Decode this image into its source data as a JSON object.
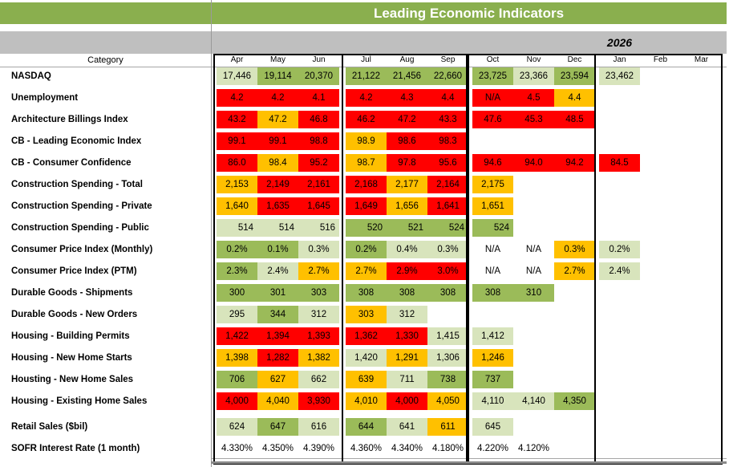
{
  "title": "Leading Economic Indicators",
  "year_label": "2026",
  "category_header": "Category",
  "months": [
    "Apr",
    "May",
    "Jun",
    "Jul",
    "Aug",
    "Sep",
    "Oct",
    "Nov",
    "Dec",
    "Jan",
    "Feb",
    "Mar"
  ],
  "colors": {
    "title_green": "#8AAF4E",
    "dark_green": "#9BBB59",
    "light_green": "#D8E4BC",
    "red": "#FF0000",
    "amber": "#FFC000",
    "gray_band": "#BFBFBF"
  },
  "rows": [
    {
      "label": "NASDAQ",
      "cells": [
        {
          "v": "17,446",
          "c": "light_green"
        },
        {
          "v": "19,114",
          "c": "dark_green"
        },
        {
          "v": "20,370",
          "c": "dark_green"
        },
        {
          "v": "21,122",
          "c": "dark_green"
        },
        {
          "v": "21,456",
          "c": "dark_green"
        },
        {
          "v": "22,660",
          "c": "dark_green"
        },
        {
          "v": "23,725",
          "c": "dark_green"
        },
        {
          "v": "23,366",
          "c": "light_green"
        },
        {
          "v": "23,594",
          "c": "dark_green"
        },
        {
          "v": "23,462",
          "c": "light_green"
        },
        {
          "v": "",
          "c": ""
        },
        {
          "v": "",
          "c": ""
        }
      ]
    },
    {
      "label": "Unemployment",
      "cells": [
        {
          "v": "4.2",
          "c": "red"
        },
        {
          "v": "4.2",
          "c": "red"
        },
        {
          "v": "4.1",
          "c": "red"
        },
        {
          "v": "4.2",
          "c": "red"
        },
        {
          "v": "4.3",
          "c": "red"
        },
        {
          "v": "4.4",
          "c": "red"
        },
        {
          "v": "N/A",
          "c": "red"
        },
        {
          "v": "4.5",
          "c": "red"
        },
        {
          "v": "4.4",
          "c": "amber"
        },
        {
          "v": "",
          "c": ""
        },
        {
          "v": "",
          "c": ""
        },
        {
          "v": "",
          "c": ""
        }
      ]
    },
    {
      "label": "Architecture Billings Index",
      "cells": [
        {
          "v": "43.2",
          "c": "red"
        },
        {
          "v": "47.2",
          "c": "amber"
        },
        {
          "v": "46.8",
          "c": "red"
        },
        {
          "v": "46.2",
          "c": "red"
        },
        {
          "v": "47.2",
          "c": "red"
        },
        {
          "v": "43.3",
          "c": "red"
        },
        {
          "v": "47.6",
          "c": "red"
        },
        {
          "v": "45.3",
          "c": "red"
        },
        {
          "v": "48.5",
          "c": "red"
        },
        {
          "v": "",
          "c": ""
        },
        {
          "v": "",
          "c": ""
        },
        {
          "v": "",
          "c": ""
        }
      ]
    },
    {
      "label": "CB - Leading Economic Index",
      "cells": [
        {
          "v": "99.1",
          "c": "red"
        },
        {
          "v": "99.1",
          "c": "red"
        },
        {
          "v": "98.8",
          "c": "red"
        },
        {
          "v": "98.9",
          "c": "amber"
        },
        {
          "v": "98.6",
          "c": "red"
        },
        {
          "v": "98.3",
          "c": "red"
        },
        {
          "v": "",
          "c": ""
        },
        {
          "v": "",
          "c": ""
        },
        {
          "v": "",
          "c": ""
        },
        {
          "v": "",
          "c": ""
        },
        {
          "v": "",
          "c": ""
        },
        {
          "v": "",
          "c": ""
        }
      ]
    },
    {
      "label": "CB - Consumer Confidence",
      "cells": [
        {
          "v": "86.0",
          "c": "red"
        },
        {
          "v": "98.4",
          "c": "amber"
        },
        {
          "v": "95.2",
          "c": "red"
        },
        {
          "v": "98.7",
          "c": "amber"
        },
        {
          "v": "97.8",
          "c": "red"
        },
        {
          "v": "95.6",
          "c": "red"
        },
        {
          "v": "94.6",
          "c": "red"
        },
        {
          "v": "94.0",
          "c": "red"
        },
        {
          "v": "94.2",
          "c": "red"
        },
        {
          "v": "84.5",
          "c": "red"
        },
        {
          "v": "",
          "c": ""
        },
        {
          "v": "",
          "c": ""
        }
      ]
    },
    {
      "label": "Construction Spending - Total",
      "cells": [
        {
          "v": "2,153",
          "c": "amber"
        },
        {
          "v": "2,149",
          "c": "red"
        },
        {
          "v": "2,161",
          "c": "red"
        },
        {
          "v": "2,168",
          "c": "red"
        },
        {
          "v": "2,177",
          "c": "amber"
        },
        {
          "v": "2,164",
          "c": "red"
        },
        {
          "v": "2,175",
          "c": "amber"
        },
        {
          "v": "",
          "c": ""
        },
        {
          "v": "",
          "c": ""
        },
        {
          "v": "",
          "c": ""
        },
        {
          "v": "",
          "c": ""
        },
        {
          "v": "",
          "c": ""
        }
      ]
    },
    {
      "label": "Construction Spending - Private",
      "cells": [
        {
          "v": "1,640",
          "c": "amber"
        },
        {
          "v": "1,635",
          "c": "red"
        },
        {
          "v": "1,645",
          "c": "red"
        },
        {
          "v": "1,649",
          "c": "red"
        },
        {
          "v": "1,656",
          "c": "amber"
        },
        {
          "v": "1,641",
          "c": "red"
        },
        {
          "v": "1,651",
          "c": "amber"
        },
        {
          "v": "",
          "c": ""
        },
        {
          "v": "",
          "c": ""
        },
        {
          "v": "",
          "c": ""
        },
        {
          "v": "",
          "c": ""
        },
        {
          "v": "",
          "c": ""
        }
      ]
    },
    {
      "label": "Construction Spending - Public",
      "align": "right",
      "cells": [
        {
          "v": "514",
          "c": "light_green"
        },
        {
          "v": "514",
          "c": "light_green"
        },
        {
          "v": "516",
          "c": "light_green"
        },
        {
          "v": "520",
          "c": "dark_green"
        },
        {
          "v": "521",
          "c": "dark_green"
        },
        {
          "v": "524",
          "c": "dark_green"
        },
        {
          "v": "524",
          "c": "dark_green"
        },
        {
          "v": "",
          "c": ""
        },
        {
          "v": "",
          "c": ""
        },
        {
          "v": "",
          "c": ""
        },
        {
          "v": "",
          "c": ""
        },
        {
          "v": "",
          "c": ""
        }
      ]
    },
    {
      "label": "Consumer Price Index (Monthly)",
      "cells": [
        {
          "v": "0.2%",
          "c": "dark_green"
        },
        {
          "v": "0.1%",
          "c": "dark_green"
        },
        {
          "v": "0.3%",
          "c": "light_green"
        },
        {
          "v": "0.2%",
          "c": "dark_green"
        },
        {
          "v": "0.4%",
          "c": "light_green"
        },
        {
          "v": "0.3%",
          "c": "light_green"
        },
        {
          "v": "N/A",
          "c": ""
        },
        {
          "v": "N/A",
          "c": ""
        },
        {
          "v": "0.3%",
          "c": "amber"
        },
        {
          "v": "0.2%",
          "c": "light_green"
        },
        {
          "v": "",
          "c": ""
        },
        {
          "v": "",
          "c": ""
        }
      ]
    },
    {
      "label": "Consumer Price Index (PTM)",
      "cells": [
        {
          "v": "2.3%",
          "c": "dark_green"
        },
        {
          "v": "2.4%",
          "c": "light_green"
        },
        {
          "v": "2.7%",
          "c": "amber"
        },
        {
          "v": "2.7%",
          "c": "amber"
        },
        {
          "v": "2.9%",
          "c": "red"
        },
        {
          "v": "3.0%",
          "c": "red"
        },
        {
          "v": "N/A",
          "c": ""
        },
        {
          "v": "N/A",
          "c": ""
        },
        {
          "v": "2.7%",
          "c": "amber"
        },
        {
          "v": "2.4%",
          "c": "light_green"
        },
        {
          "v": "",
          "c": ""
        },
        {
          "v": "",
          "c": ""
        }
      ]
    },
    {
      "label": "Durable Goods - Shipments",
      "cells": [
        {
          "v": "300",
          "c": "dark_green"
        },
        {
          "v": "301",
          "c": "dark_green"
        },
        {
          "v": "303",
          "c": "dark_green"
        },
        {
          "v": "308",
          "c": "dark_green"
        },
        {
          "v": "308",
          "c": "dark_green"
        },
        {
          "v": "308",
          "c": "dark_green"
        },
        {
          "v": "308",
          "c": "dark_green"
        },
        {
          "v": "310",
          "c": "dark_green"
        },
        {
          "v": "",
          "c": ""
        },
        {
          "v": "",
          "c": ""
        },
        {
          "v": "",
          "c": ""
        },
        {
          "v": "",
          "c": ""
        }
      ]
    },
    {
      "label": "Durable Goods - New Orders",
      "cells": [
        {
          "v": "295",
          "c": "light_green"
        },
        {
          "v": "344",
          "c": "dark_green"
        },
        {
          "v": "312",
          "c": "light_green"
        },
        {
          "v": "303",
          "c": "amber"
        },
        {
          "v": "312",
          "c": "light_green"
        },
        {
          "v": "",
          "c": ""
        },
        {
          "v": "",
          "c": ""
        },
        {
          "v": "",
          "c": ""
        },
        {
          "v": "",
          "c": ""
        },
        {
          "v": "",
          "c": ""
        },
        {
          "v": "",
          "c": ""
        },
        {
          "v": "",
          "c": ""
        }
      ]
    },
    {
      "label": "Housing - Building Permits",
      "cells": [
        {
          "v": "1,422",
          "c": "red"
        },
        {
          "v": "1,394",
          "c": "red"
        },
        {
          "v": "1,393",
          "c": "red"
        },
        {
          "v": "1,362",
          "c": "red"
        },
        {
          "v": "1,330",
          "c": "red"
        },
        {
          "v": "1,415",
          "c": "light_green"
        },
        {
          "v": "1,412",
          "c": "light_green"
        },
        {
          "v": "",
          "c": ""
        },
        {
          "v": "",
          "c": ""
        },
        {
          "v": "",
          "c": ""
        },
        {
          "v": "",
          "c": ""
        },
        {
          "v": "",
          "c": ""
        }
      ]
    },
    {
      "label": "Housing - New Home Starts",
      "cells": [
        {
          "v": "1,398",
          "c": "amber"
        },
        {
          "v": "1,282",
          "c": "red"
        },
        {
          "v": "1,382",
          "c": "amber"
        },
        {
          "v": "1,420",
          "c": "light_green"
        },
        {
          "v": "1,291",
          "c": "amber"
        },
        {
          "v": "1,306",
          "c": "light_green"
        },
        {
          "v": "1,246",
          "c": "amber"
        },
        {
          "v": "",
          "c": ""
        },
        {
          "v": "",
          "c": ""
        },
        {
          "v": "",
          "c": ""
        },
        {
          "v": "",
          "c": ""
        },
        {
          "v": "",
          "c": ""
        }
      ]
    },
    {
      "label": "Housting - New Home Sales",
      "cells": [
        {
          "v": "706",
          "c": "dark_green"
        },
        {
          "v": "627",
          "c": "amber"
        },
        {
          "v": "662",
          "c": "light_green"
        },
        {
          "v": "639",
          "c": "amber"
        },
        {
          "v": "711",
          "c": "light_green"
        },
        {
          "v": "738",
          "c": "dark_green"
        },
        {
          "v": "737",
          "c": "dark_green"
        },
        {
          "v": "",
          "c": ""
        },
        {
          "v": "",
          "c": ""
        },
        {
          "v": "",
          "c": ""
        },
        {
          "v": "",
          "c": ""
        },
        {
          "v": "",
          "c": ""
        }
      ]
    },
    {
      "label": "Housing - Existing Home Sales",
      "cells": [
        {
          "v": "4,000",
          "c": "red"
        },
        {
          "v": "4,040",
          "c": "amber"
        },
        {
          "v": "3,930",
          "c": "red"
        },
        {
          "v": "4,010",
          "c": "amber"
        },
        {
          "v": "4,000",
          "c": "red"
        },
        {
          "v": "4,050",
          "c": "amber"
        },
        {
          "v": "4,110",
          "c": "light_green"
        },
        {
          "v": "4,140",
          "c": "light_green"
        },
        {
          "v": "4,350",
          "c": "dark_green"
        },
        {
          "v": "",
          "c": ""
        },
        {
          "v": "",
          "c": ""
        },
        {
          "v": "",
          "c": ""
        }
      ]
    },
    {
      "label": "Retail Sales ($bil)",
      "cells": [
        {
          "v": "624",
          "c": "light_green"
        },
        {
          "v": "647",
          "c": "dark_green"
        },
        {
          "v": "616",
          "c": "light_green"
        },
        {
          "v": "644",
          "c": "dark_green"
        },
        {
          "v": "641",
          "c": "light_green"
        },
        {
          "v": "611",
          "c": "amber"
        },
        {
          "v": "645",
          "c": "light_green"
        },
        {
          "v": "",
          "c": ""
        },
        {
          "v": "",
          "c": ""
        },
        {
          "v": "",
          "c": ""
        },
        {
          "v": "",
          "c": ""
        },
        {
          "v": "",
          "c": ""
        }
      ]
    },
    {
      "label": "SOFR Interest Rate (1 month)",
      "cells": [
        {
          "v": "4.330%",
          "c": ""
        },
        {
          "v": "4.350%",
          "c": ""
        },
        {
          "v": "4.390%",
          "c": ""
        },
        {
          "v": "4.360%",
          "c": ""
        },
        {
          "v": "4.340%",
          "c": ""
        },
        {
          "v": "4.180%",
          "c": ""
        },
        {
          "v": "4.220%",
          "c": ""
        },
        {
          "v": "4.120%",
          "c": ""
        },
        {
          "v": "",
          "c": ""
        },
        {
          "v": "",
          "c": ""
        },
        {
          "v": "",
          "c": ""
        },
        {
          "v": "",
          "c": ""
        }
      ]
    }
  ]
}
